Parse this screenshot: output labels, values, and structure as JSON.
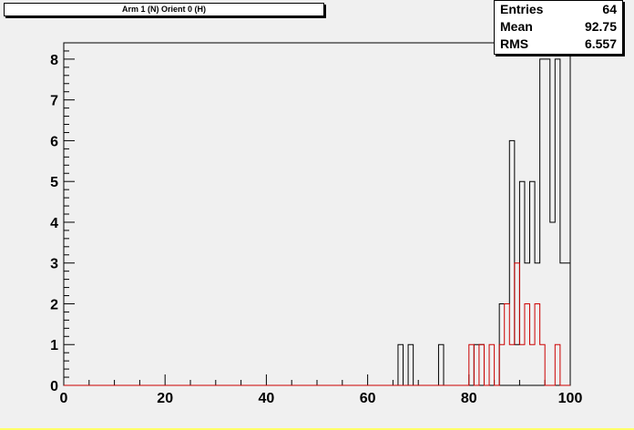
{
  "title": "Arm 1 (N) Orient 0 (H)",
  "stats": [
    {
      "key": "Entries",
      "value": "64"
    },
    {
      "key": "Mean",
      "value": "92.75"
    },
    {
      "key": "RMS",
      "value": "6.557"
    }
  ],
  "chart_data": {
    "type": "step",
    "xlim": [
      0,
      100
    ],
    "ylim": [
      0,
      8.4
    ],
    "xticks": [
      "0",
      "20",
      "40",
      "60",
      "80",
      "100"
    ],
    "yticks": [
      "0",
      "1",
      "2",
      "3",
      "4",
      "5",
      "6",
      "7",
      "8"
    ],
    "bin_width": 1,
    "series": [
      {
        "color": "#000000",
        "bins": [
          [
            65,
            0
          ],
          [
            66,
            1
          ],
          [
            67,
            0
          ],
          [
            68,
            1
          ],
          [
            69,
            0
          ],
          [
            74,
            1
          ],
          [
            75,
            0
          ],
          [
            81,
            1
          ],
          [
            83,
            0
          ],
          [
            86,
            2
          ],
          [
            88,
            6
          ],
          [
            89,
            1
          ],
          [
            90,
            5
          ],
          [
            91,
            3
          ],
          [
            92,
            5
          ],
          [
            93,
            3
          ],
          [
            94,
            8
          ],
          [
            96,
            4
          ],
          [
            97,
            8
          ],
          [
            98,
            3
          ],
          [
            100,
            0
          ]
        ]
      },
      {
        "color": "#cc0000",
        "bins": [
          [
            80,
            1
          ],
          [
            81,
            0
          ],
          [
            82,
            1
          ],
          [
            83,
            0
          ],
          [
            84,
            1
          ],
          [
            85,
            0
          ],
          [
            86,
            1
          ],
          [
            87,
            2
          ],
          [
            88,
            1
          ],
          [
            89,
            3
          ],
          [
            90,
            1
          ],
          [
            91,
            2
          ],
          [
            92,
            1
          ],
          [
            93,
            2
          ],
          [
            94,
            1
          ],
          [
            95,
            0
          ],
          [
            97,
            1
          ],
          [
            98,
            0
          ]
        ]
      }
    ]
  }
}
